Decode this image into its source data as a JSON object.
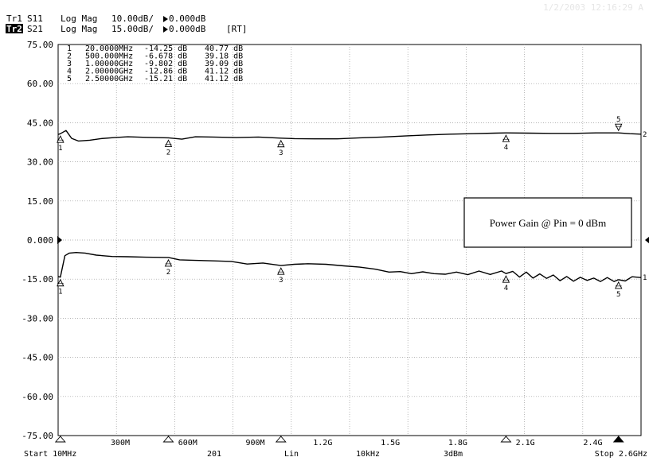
{
  "header": {
    "timestamp": "1/2/2003 12:16:29 A",
    "trace1": {
      "badge": "Tr1",
      "param": "S11",
      "format": "Log Mag",
      "scale": "10.00dB/",
      "ref": "0.000dB",
      "tag": ""
    },
    "trace2": {
      "badge": "Tr2",
      "param": "S21",
      "format": "Log Mag",
      "scale": "15.00dB/",
      "ref": "0.000dB",
      "tag": "[RT]"
    }
  },
  "colors": {
    "background": "#ffffff",
    "trace": "#000000",
    "grid": "#9a9a9a",
    "badge_bg": "#000000",
    "badge_fg": "#ffffff",
    "timestamp": "#e6e6e6"
  },
  "markers": [
    {
      "id": "1",
      "freq": "20.0000MHz",
      "s11": "-14.25 dB",
      "s21": "40.77 dB"
    },
    {
      "id": "2",
      "freq": "500.000MHz",
      "s11": "-6.678 dB",
      "s21": "39.18 dB"
    },
    {
      "id": "3",
      "freq": "1.00000GHz",
      "s11": "-9.802 dB",
      "s21": "39.09 dB"
    },
    {
      "id": "4",
      "freq": "2.00000GHz",
      "s11": "-12.86 dB",
      "s21": "41.12 dB"
    },
    {
      "id": "5",
      "freq": "2.50000GHz",
      "s11": "-15.21 dB",
      "s21": "41.12 dB"
    }
  ],
  "annotation": "Power Gain @ Pin = 0 dBm",
  "footer": {
    "start": "Start 10MHz",
    "points": "201",
    "sweep": "Lin",
    "ifbw": "10kHz",
    "power": "3dBm",
    "stop": "Stop 2.6GHz"
  },
  "chart_data": {
    "type": "line",
    "title": "",
    "xlabel": "",
    "ylabel": "",
    "xlim": [
      10,
      2600
    ],
    "ylim": [
      -75,
      75
    ],
    "x_unit": "MHz",
    "grid": true,
    "y_ticks": [
      75,
      60,
      45,
      30,
      15,
      0,
      -15,
      -30,
      -45,
      -60,
      -75
    ],
    "y_tick_labels": [
      "75.00",
      "60.00",
      "45.00",
      "30.00",
      "15.00",
      "0.000",
      "-15.00",
      "-30.00",
      "-45.00",
      "-60.00",
      "-75.00"
    ],
    "x_ticks": [
      300,
      600,
      900,
      1200,
      1500,
      1800,
      2100,
      2400
    ],
    "x_tick_labels": [
      "300M",
      "600M",
      "900M",
      "1.2G",
      "1.5G",
      "1.8G",
      "2.1G",
      "2.4G"
    ],
    "reference_arrows": [
      {
        "trace": "Tr1",
        "value": 0,
        "side": "left"
      },
      {
        "trace": "Tr2",
        "value": 0,
        "side": "right"
      }
    ],
    "series": [
      {
        "trace": "Tr2",
        "end_label": "2",
        "x": [
          10,
          20,
          45,
          70,
          100,
          150,
          200,
          260,
          320,
          400,
          500,
          560,
          620,
          700,
          800,
          900,
          1000,
          1060,
          1150,
          1250,
          1350,
          1450,
          1550,
          1650,
          1750,
          1850,
          1950,
          2000,
          2100,
          2200,
          2300,
          2400,
          2500,
          2550,
          2600
        ],
        "y": [
          40.5,
          40.8,
          42.0,
          39.0,
          38.0,
          38.3,
          38.9,
          39.3,
          39.6,
          39.4,
          39.2,
          38.7,
          39.6,
          39.5,
          39.3,
          39.5,
          39.1,
          38.9,
          38.8,
          38.8,
          39.2,
          39.5,
          39.9,
          40.3,
          40.6,
          40.8,
          41.0,
          41.1,
          41.0,
          40.9,
          40.9,
          41.1,
          41.1,
          40.8,
          40.6
        ]
      },
      {
        "trace": "Tr1",
        "end_label": "1",
        "x": [
          10,
          20,
          40,
          60,
          90,
          130,
          180,
          250,
          320,
          400,
          500,
          550,
          620,
          700,
          780,
          850,
          920,
          1000,
          1060,
          1120,
          1200,
          1280,
          1350,
          1420,
          1480,
          1530,
          1580,
          1630,
          1680,
          1730,
          1780,
          1830,
          1880,
          1930,
          1980,
          2000,
          2030,
          2060,
          2090,
          2120,
          2150,
          2180,
          2210,
          2240,
          2270,
          2300,
          2330,
          2360,
          2390,
          2420,
          2450,
          2480,
          2500,
          2530,
          2560,
          2600
        ],
        "y": [
          -14.0,
          -14.25,
          -6.0,
          -5.0,
          -4.8,
          -5.0,
          -5.8,
          -6.3,
          -6.4,
          -6.6,
          -6.68,
          -7.6,
          -7.8,
          -8.0,
          -8.2,
          -9.2,
          -8.8,
          -9.8,
          -9.3,
          -9.1,
          -9.3,
          -9.9,
          -10.4,
          -11.2,
          -12.3,
          -12.1,
          -12.9,
          -12.2,
          -12.9,
          -13.1,
          -12.3,
          -13.3,
          -11.9,
          -13.2,
          -11.9,
          -12.86,
          -12.0,
          -14.2,
          -12.3,
          -14.6,
          -13.0,
          -14.7,
          -13.4,
          -15.6,
          -14.0,
          -15.8,
          -14.3,
          -15.5,
          -14.6,
          -15.9,
          -14.4,
          -15.9,
          -15.21,
          -15.7,
          -14.1,
          -14.4
        ]
      }
    ]
  }
}
